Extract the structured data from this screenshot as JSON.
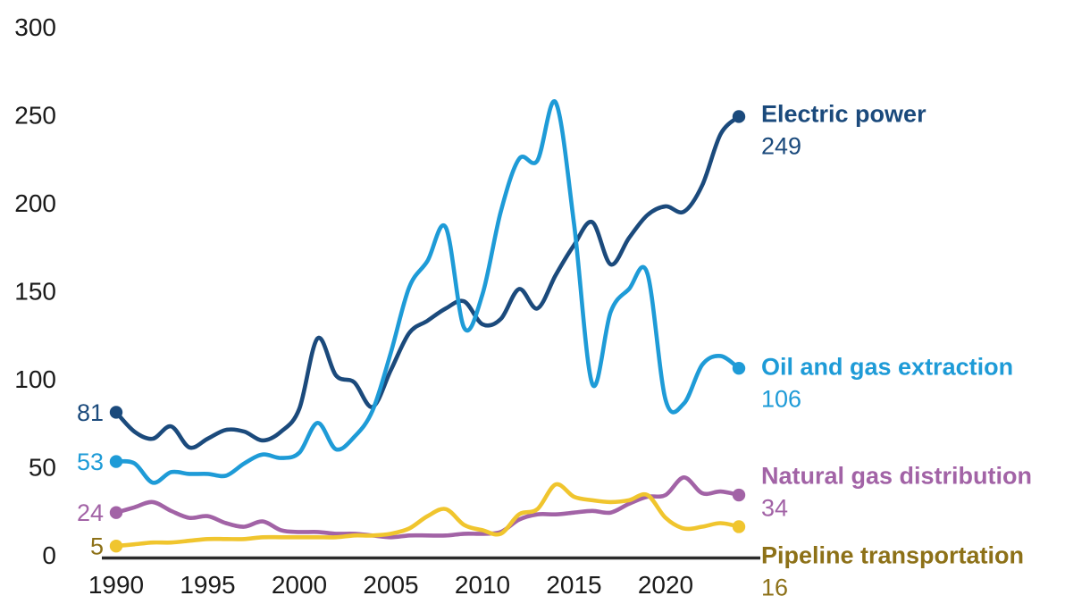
{
  "chart_data": {
    "type": "line",
    "title": "",
    "xlabel": "",
    "ylabel": "",
    "x": [
      1990,
      1991,
      1992,
      1993,
      1994,
      1995,
      1996,
      1997,
      1998,
      1999,
      2000,
      2001,
      2002,
      2003,
      2004,
      2005,
      2006,
      2007,
      2008,
      2009,
      2010,
      2011,
      2012,
      2013,
      2014,
      2015,
      2016,
      2017,
      2018,
      2019,
      2020,
      2021,
      2022,
      2023,
      2024
    ],
    "xlim": [
      1990,
      2024
    ],
    "ylim": [
      0,
      300
    ],
    "xticks": [
      "1990",
      "1995",
      "2000",
      "2005",
      "2010",
      "2015",
      "2020"
    ],
    "xtick_years": [
      1990,
      1995,
      2000,
      2005,
      2010,
      2015,
      2020
    ],
    "yticks": [
      "0",
      "50",
      "100",
      "150",
      "200",
      "250",
      "300"
    ],
    "ytick_values": [
      0,
      50,
      100,
      150,
      200,
      250,
      300
    ],
    "grid": false,
    "legend_position": "end-of-line-labels",
    "axis_text_color": "#1a1a1a",
    "axis_line_color": "#2b2b2b",
    "series": [
      {
        "name": "Electric power",
        "color": "#1b4a7c",
        "label_color": "#1b4a7c",
        "start_label": "81",
        "end_label": "249",
        "values": [
          81,
          70,
          66,
          73,
          61,
          66,
          71,
          70,
          65,
          70,
          83,
          123,
          102,
          98,
          84,
          105,
          126,
          133,
          140,
          144,
          131,
          134,
          151,
          140,
          159,
          176,
          189,
          165,
          180,
          193,
          198,
          195,
          210,
          239,
          249
        ]
      },
      {
        "name": "Oil and gas extraction",
        "color": "#1e9bd7",
        "label_color": "#1e9bd7",
        "start_label": "53",
        "end_label": "106",
        "values": [
          53,
          52,
          41,
          47,
          46,
          46,
          45,
          52,
          57,
          55,
          58,
          75,
          60,
          67,
          82,
          115,
          152,
          167,
          186,
          129,
          148,
          195,
          225,
          224,
          257,
          188,
          97,
          138,
          151,
          160,
          88,
          86,
          108,
          113,
          106
        ]
      },
      {
        "name": "Natural gas distribution",
        "color": "#a263a6",
        "label_color": "#a263a6",
        "start_label": "24",
        "end_label": "34",
        "values": [
          24,
          27,
          30,
          25,
          21,
          22,
          18,
          16,
          19,
          14,
          13,
          13,
          12,
          12,
          11,
          10,
          11,
          11,
          11,
          12,
          12,
          13,
          20,
          23,
          23,
          24,
          25,
          24,
          29,
          33,
          34,
          44,
          35,
          36,
          34
        ]
      },
      {
        "name": "Pipeline transportation",
        "color": "#f0c52e",
        "label_color": "#8d7118",
        "start_label": "5",
        "end_label": "16",
        "values": [
          5,
          6,
          7,
          7,
          8,
          9,
          9,
          9,
          10,
          10,
          10,
          10,
          10,
          11,
          11,
          12,
          15,
          22,
          26,
          17,
          14,
          12,
          23,
          26,
          40,
          33,
          31,
          30,
          31,
          34,
          21,
          15,
          16,
          18,
          16
        ]
      }
    ]
  }
}
